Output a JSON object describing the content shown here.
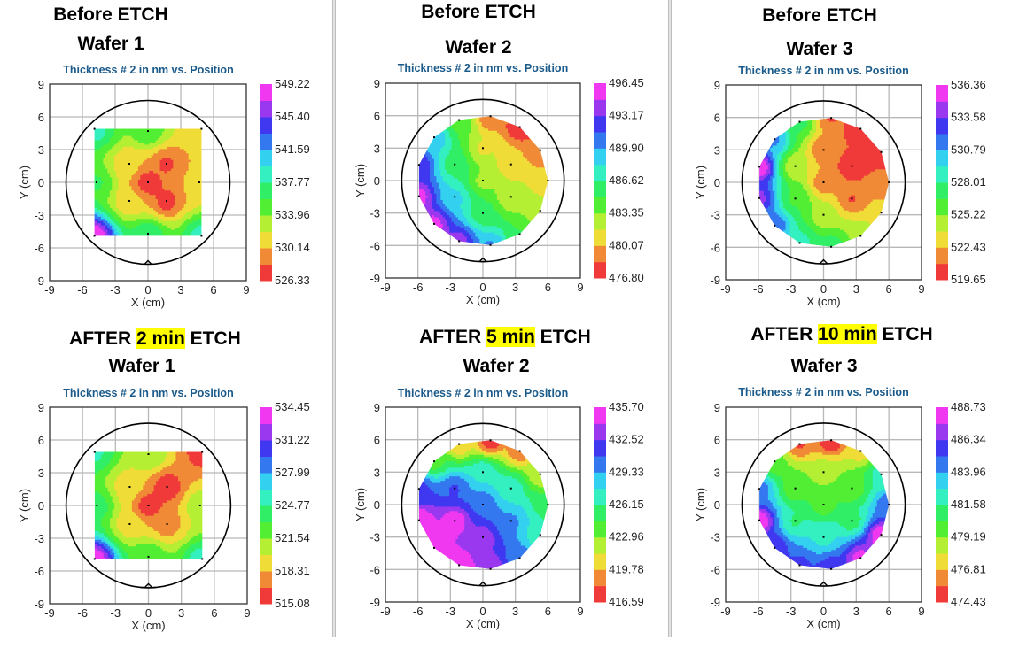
{
  "headings": [
    {
      "line1_pre": "Before ETCH",
      "line1_hl": "",
      "line1_post": "",
      "line2": "Wafer 1"
    },
    {
      "line1_pre": "Before ETCH",
      "line1_hl": "",
      "line1_post": "",
      "line2": "Wafer 2"
    },
    {
      "line1_pre": "Before ETCH",
      "line1_hl": "",
      "line1_post": "",
      "line2": "Wafer 3"
    },
    {
      "line1_pre": "AFTER ",
      "line1_hl": "2 min",
      "line1_post": " ETCH",
      "line2": "Wafer 1"
    },
    {
      "line1_pre": "AFTER ",
      "line1_hl": "5 min",
      "line1_post": " ETCH",
      "line2": "Wafer 2"
    },
    {
      "line1_pre": "AFTER ",
      "line1_hl": "10 min",
      "line1_post": " ETCH",
      "line2": "Wafer 3"
    }
  ],
  "colors": {
    "highlight": "#ffff00",
    "chart_title": "#1a5a8a",
    "bands": [
      "#f03a3a",
      "#f08a36",
      "#f0dc36",
      "#b4ef34",
      "#52ee34",
      "#30ee66",
      "#34f0c0",
      "#34d0f0",
      "#3478f0",
      "#4038f0",
      "#9a38f0",
      "#f038f0"
    ]
  },
  "chart_data": [
    {
      "type": "heatmap",
      "title": "Thickness # 2 in nm vs. Position",
      "xlabel": "X (cm)",
      "ylabel": "Y (cm)",
      "xlim": [
        -9,
        9
      ],
      "ylim": [
        -9,
        9
      ],
      "xticks": [
        "-9",
        "-6",
        "-3",
        "0",
        "3",
        "6",
        "9"
      ],
      "yticks": [
        "9",
        "6",
        "3",
        "0",
        "-3",
        "-6",
        "-9"
      ],
      "grid": true,
      "wafer_radius_cm": 7.5,
      "colorbar_ticks": [
        "549.22",
        "545.40",
        "541.59",
        "537.77",
        "533.96",
        "530.14",
        "526.33"
      ],
      "vmin": 526.33,
      "vmax": 549.22,
      "points": [
        [
          0,
          0,
          527.0
        ],
        [
          1.7,
          1.7,
          528.0
        ],
        [
          -1.7,
          1.7,
          530.5
        ],
        [
          -1.7,
          -1.7,
          530.6
        ],
        [
          1.7,
          -1.7,
          527.5
        ],
        [
          0,
          4.7,
          535.5
        ],
        [
          4.7,
          0,
          531.0
        ],
        [
          0,
          -4.7,
          537.5
        ],
        [
          -4.7,
          0,
          536.0
        ],
        [
          4.9,
          4.9,
          531.0
        ],
        [
          -4.9,
          4.9,
          538.5
        ],
        [
          4.9,
          -4.9,
          538.5
        ],
        [
          -4.9,
          -4.9,
          549.0
        ]
      ]
    },
    {
      "type": "heatmap",
      "title": "Thickness # 2 in nm vs. Position",
      "xlabel": "X (cm)",
      "ylabel": "Y (cm)",
      "xlim": [
        -9,
        9
      ],
      "ylim": [
        -9,
        9
      ],
      "xticks": [
        "-9",
        "-6",
        "-3",
        "0",
        "3",
        "6",
        "9"
      ],
      "yticks": [
        "9",
        "6",
        "3",
        "0",
        "-3",
        "-6",
        "-9"
      ],
      "grid": true,
      "wafer_radius_cm": 7.5,
      "colorbar_ticks": [
        "496.45",
        "493.17",
        "489.90",
        "486.62",
        "483.35",
        "480.07",
        "476.80"
      ],
      "vmin": 476.8,
      "vmax": 496.45,
      "points": [
        [
          0,
          0,
          483.0
        ],
        [
          0,
          3,
          481.5
        ],
        [
          2.6,
          1.5,
          480.5
        ],
        [
          2.6,
          -1.5,
          482.0
        ],
        [
          0,
          -3,
          485.5
        ],
        [
          -2.6,
          -1.5,
          488.5
        ],
        [
          -2.6,
          1.5,
          486.0
        ],
        [
          0.7,
          5.95,
          478.5
        ],
        [
          3.4,
          4.95,
          476.9
        ],
        [
          5.3,
          2.8,
          478.5
        ],
        [
          6,
          0,
          480.5
        ],
        [
          5.3,
          -2.8,
          482.0
        ],
        [
          3.4,
          -4.95,
          485.0
        ],
        [
          0.7,
          -5.95,
          490.0
        ],
        [
          -2.2,
          -5.6,
          494.0
        ],
        [
          -4.5,
          -4,
          495.5
        ],
        [
          -5.9,
          -1.45,
          495.5
        ],
        [
          -5.9,
          1.45,
          493.0
        ],
        [
          -4.5,
          4,
          489.5
        ],
        [
          -2.2,
          5.6,
          484.5
        ]
      ]
    },
    {
      "type": "heatmap",
      "title": "Thickness # 2 in nm vs. Position",
      "xlabel": "X (cm)",
      "ylabel": "Y (cm)",
      "xlim": [
        -9,
        9
      ],
      "ylim": [
        -9,
        9
      ],
      "xticks": [
        "-9",
        "-6",
        "-3",
        "0",
        "3",
        "6",
        "9"
      ],
      "yticks": [
        "9",
        "6",
        "3",
        "0",
        "-3",
        "-6",
        "-9"
      ],
      "grid": true,
      "wafer_radius_cm": 7.5,
      "colorbar_ticks": [
        "536.36",
        "533.58",
        "530.79",
        "528.01",
        "525.22",
        "522.43",
        "519.65"
      ],
      "vmin": 519.65,
      "vmax": 536.36,
      "points": [
        [
          0,
          0,
          521.5
        ],
        [
          0,
          3,
          521.2
        ],
        [
          2.6,
          1.5,
          519.8
        ],
        [
          2.6,
          -1.5,
          521.0
        ],
        [
          0,
          -3,
          524.5
        ],
        [
          -2.6,
          -1.5,
          526.5
        ],
        [
          -2.6,
          1.5,
          524.0
        ],
        [
          0.7,
          5.95,
          521.0
        ],
        [
          3.4,
          4.95,
          519.8
        ],
        [
          5.3,
          2.8,
          520.0
        ],
        [
          6,
          0,
          521.5
        ],
        [
          5.3,
          -2.8,
          523.0
        ],
        [
          3.4,
          -4.95,
          525.0
        ],
        [
          0.7,
          -5.95,
          527.5
        ],
        [
          -2.2,
          -5.6,
          528.5
        ],
        [
          -4.5,
          -4,
          532.0
        ],
        [
          -5.9,
          -1.45,
          534.0
        ],
        [
          -5.9,
          1.45,
          536.0
        ],
        [
          -4.5,
          4,
          531.0
        ],
        [
          -2.2,
          5.6,
          527.0
        ]
      ]
    },
    {
      "type": "heatmap",
      "title": "Thickness # 2 in nm vs. Position",
      "xlabel": "X (cm)",
      "ylabel": "Y (cm)",
      "xlim": [
        -9,
        9
      ],
      "ylim": [
        -9,
        9
      ],
      "xticks": [
        "-9",
        "-6",
        "-3",
        "0",
        "3",
        "6",
        "9"
      ],
      "yticks": [
        "9",
        "6",
        "3",
        "0",
        "-3",
        "-6",
        "-9"
      ],
      "grid": true,
      "wafer_radius_cm": 7.5,
      "colorbar_ticks": [
        "534.45",
        "531.22",
        "527.99",
        "524.77",
        "521.54",
        "518.31",
        "515.08"
      ],
      "vmin": 515.08,
      "vmax": 534.45,
      "points": [
        [
          0,
          0,
          515.5
        ],
        [
          1.7,
          1.7,
          515.5
        ],
        [
          -1.7,
          1.7,
          519.0
        ],
        [
          -1.7,
          -1.7,
          519.0
        ],
        [
          1.7,
          -1.7,
          517.5
        ],
        [
          0,
          4.7,
          521.5
        ],
        [
          4.7,
          0,
          521.0
        ],
        [
          0,
          -4.7,
          523.0
        ],
        [
          -4.7,
          0,
          524.0
        ],
        [
          4.9,
          4.9,
          516.0
        ],
        [
          -4.9,
          4.9,
          525.0
        ],
        [
          4.9,
          -4.9,
          525.5
        ],
        [
          -4.9,
          -4.9,
          534.0
        ]
      ]
    },
    {
      "type": "heatmap",
      "title": "Thickness # 2 in nm vs. Position",
      "xlabel": "X (cm)",
      "ylabel": "Y (cm)",
      "xlim": [
        -9,
        9
      ],
      "ylim": [
        -9,
        9
      ],
      "xticks": [
        "-9",
        "-6",
        "-3",
        "0",
        "3",
        "6",
        "9"
      ],
      "yticks": [
        "9",
        "6",
        "3",
        "0",
        "-3",
        "-6",
        "-9"
      ],
      "grid": true,
      "wafer_radius_cm": 7.5,
      "colorbar_ticks": [
        "435.70",
        "432.52",
        "429.33",
        "426.15",
        "422.96",
        "419.78",
        "416.59"
      ],
      "vmin": 416.59,
      "vmax": 435.7,
      "points": [
        [
          0,
          0,
          430.5
        ],
        [
          0,
          3,
          427.5
        ],
        [
          2.6,
          1.5,
          427.0
        ],
        [
          2.6,
          -1.5,
          429.5
        ],
        [
          0,
          -3,
          433.5
        ],
        [
          -2.6,
          -1.5,
          435.5
        ],
        [
          -2.6,
          1.5,
          431.0
        ],
        [
          0.7,
          5.95,
          417.0
        ],
        [
          3.4,
          4.95,
          418.5
        ],
        [
          5.3,
          2.8,
          421.5
        ],
        [
          6,
          0,
          425.0
        ],
        [
          5.3,
          -2.8,
          426.5
        ],
        [
          3.4,
          -4.95,
          430.0
        ],
        [
          0.7,
          -5.95,
          434.0
        ],
        [
          -2.2,
          -5.6,
          435.5
        ],
        [
          -4.5,
          -4,
          435.6
        ],
        [
          -5.9,
          -1.45,
          435.5
        ],
        [
          -5.9,
          1.45,
          431.5
        ],
        [
          -4.5,
          4,
          424.0
        ],
        [
          -2.2,
          5.6,
          420.0
        ]
      ]
    },
    {
      "type": "heatmap",
      "title": "Thickness # 2 in nm vs. Position",
      "xlabel": "X (cm)",
      "ylabel": "Y (cm)",
      "xlim": [
        -9,
        9
      ],
      "ylim": [
        -9,
        9
      ],
      "xticks": [
        "-9",
        "-6",
        "-3",
        "0",
        "3",
        "6",
        "9"
      ],
      "yticks": [
        "9",
        "6",
        "3",
        "0",
        "-3",
        "-6",
        "-9"
      ],
      "grid": true,
      "wafer_radius_cm": 7.5,
      "colorbar_ticks": [
        "488.73",
        "486.34",
        "483.96",
        "481.58",
        "479.19",
        "476.81",
        "474.43"
      ],
      "vmin": 474.43,
      "vmax": 488.73,
      "points": [
        [
          0,
          0,
          479.8
        ],
        [
          0,
          3,
          478.5
        ],
        [
          2.6,
          1.5,
          479.5
        ],
        [
          2.6,
          -1.5,
          481.0
        ],
        [
          0,
          -3,
          482.5
        ],
        [
          -2.6,
          -1.5,
          481.5
        ],
        [
          -2.6,
          1.5,
          479.5
        ],
        [
          0.7,
          5.95,
          474.5
        ],
        [
          3.4,
          4.95,
          477.5
        ],
        [
          5.3,
          2.8,
          482.0
        ],
        [
          6,
          0,
          485.0
        ],
        [
          5.3,
          -2.8,
          488.5
        ],
        [
          3.4,
          -4.95,
          488.0
        ],
        [
          0.7,
          -5.95,
          486.0
        ],
        [
          -2.2,
          -5.6,
          485.5
        ],
        [
          -4.5,
          -4,
          486.0
        ],
        [
          -5.9,
          -1.45,
          488.5
        ],
        [
          -5.9,
          1.45,
          484.5
        ],
        [
          -4.5,
          4,
          479.5
        ],
        [
          -2.2,
          5.6,
          475.5
        ]
      ]
    }
  ]
}
